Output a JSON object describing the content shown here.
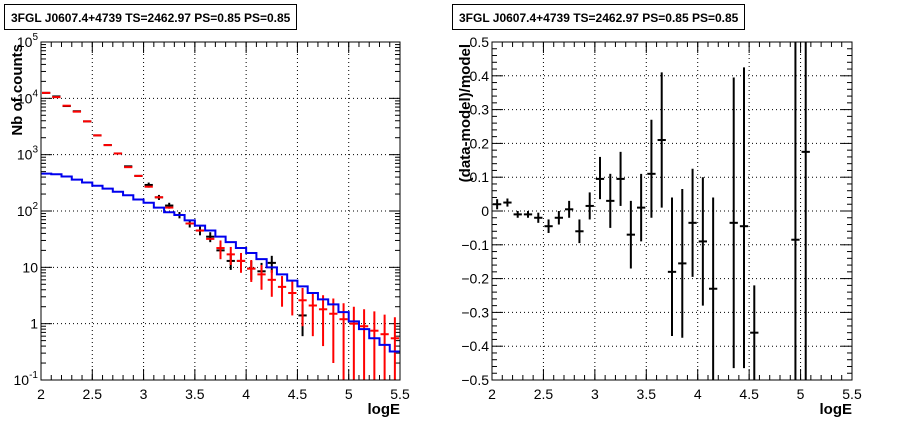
{
  "chart_data": [
    {
      "type": "line",
      "title": "3FGL J0607.4+4739 TS=2462.97 PS=0.85 PS=0.85",
      "xlabel": "logE",
      "ylabel": "Nb of counts",
      "xlim": [
        2,
        5.5
      ],
      "ylim": [
        0.1,
        100000
      ],
      "yscale": "log",
      "grid": true,
      "x_ticks": [
        2,
        2.5,
        3,
        3.5,
        4,
        4.5,
        5,
        5.5
      ],
      "x_tick_labels": [
        "2",
        "2.5",
        "3",
        "3.5",
        "4",
        "4.5",
        "5",
        "5.5"
      ],
      "y_ticks": [
        0.1,
        1,
        10,
        100,
        1000,
        10000,
        100000
      ],
      "y_tick_labels": [
        "10⁻¹",
        "1",
        "10",
        "10²",
        "10³",
        "10⁴",
        "10⁵"
      ],
      "bin_edges": [
        2.0,
        2.1,
        2.2,
        2.3,
        2.4,
        2.5,
        2.6,
        2.7,
        2.8,
        2.9,
        3.0,
        3.1,
        3.2,
        3.3,
        3.4,
        3.5,
        3.6,
        3.7,
        3.8,
        3.9,
        4.0,
        4.1,
        4.2,
        4.3,
        4.4,
        4.5,
        4.6,
        4.7,
        4.8,
        4.9,
        5.0,
        5.1,
        5.2,
        5.3,
        5.4,
        5.5
      ],
      "series": [
        {
          "style": "points",
          "color": "#000000",
          "x": [
            2.05,
            2.15,
            2.25,
            2.35,
            2.45,
            2.55,
            2.65,
            2.75,
            2.85,
            2.95,
            3.05,
            3.15,
            3.25,
            3.35,
            3.45,
            3.55,
            3.65,
            3.75,
            3.85,
            3.95,
            4.05,
            4.15,
            4.25,
            4.55
          ],
          "y": [
            12500,
            10800,
            7300,
            5900,
            3900,
            2200,
            1480,
            1050,
            620,
            420,
            290,
            175,
            125,
            85,
            60,
            45,
            35,
            20,
            13,
            13,
            9.5,
            8.5,
            12,
            1.4
          ],
          "err_low": [
            0,
            0,
            0,
            0,
            0,
            0,
            0,
            0,
            0,
            0,
            30,
            18,
            15,
            11,
            9,
            8,
            7,
            6,
            4,
            4,
            3.5,
            3.5,
            4,
            0.8
          ],
          "err_high": [
            0,
            0,
            0,
            0,
            0,
            0,
            0,
            0,
            0,
            0,
            30,
            18,
            15,
            11,
            9,
            8,
            7,
            6,
            4,
            4,
            3.5,
            3.5,
            4,
            0.8
          ]
        },
        {
          "style": "steps-errorbars",
          "color": "#ff0000",
          "x": [
            2.05,
            2.15,
            2.25,
            2.35,
            2.45,
            2.55,
            2.65,
            2.75,
            2.85,
            2.95,
            3.05,
            3.15,
            3.25,
            3.35,
            3.45,
            3.55,
            3.65,
            3.75,
            3.85,
            3.95,
            4.05,
            4.15,
            4.25,
            4.35,
            4.45,
            4.55,
            4.65,
            4.75,
            4.85,
            4.95,
            5.05,
            5.15,
            5.25,
            5.35,
            5.45
          ],
          "y": [
            12500,
            10500,
            7400,
            5800,
            3900,
            2200,
            1480,
            1050,
            600,
            420,
            270,
            175,
            115,
            85,
            60,
            45,
            32,
            22,
            17,
            13,
            9.5,
            7.5,
            6,
            4.5,
            3.5,
            2.6,
            2.1,
            1.8,
            1.5,
            1.2,
            1.0,
            0.9,
            0.75,
            0.65,
            0.55
          ],
          "err_low": [
            0,
            0,
            0,
            0,
            0,
            0,
            0,
            0,
            0,
            0,
            0,
            0,
            0,
            0,
            0,
            0,
            0,
            8,
            6,
            5,
            4,
            3.5,
            3,
            2.5,
            2.1,
            1.7,
            1.5,
            1.4,
            1.3,
            1.1,
            0.95,
            0.86,
            0.72,
            0.63,
            0.54
          ],
          "err_high": [
            0,
            0,
            0,
            0,
            0,
            0,
            0,
            0,
            0,
            0,
            0,
            0,
            0,
            0,
            0,
            0,
            0,
            8,
            6,
            5,
            4,
            3.5,
            3,
            2.5,
            2.1,
            1.7,
            1.5,
            1.4,
            1.3,
            1.1,
            1.0,
            0.9,
            0.9,
            0.8,
            0.75
          ]
        },
        {
          "style": "steps",
          "color": "#0000ee",
          "values": [
            460,
            450,
            410,
            360,
            320,
            280,
            250,
            220,
            190,
            160,
            140,
            115,
            95,
            85,
            68,
            55,
            45,
            35,
            28,
            22,
            18,
            14,
            10,
            7.5,
            5.8,
            4.6,
            3.5,
            2.7,
            2.2,
            1.6,
            1.1,
            0.8,
            0.55,
            0.42,
            0.32
          ]
        }
      ]
    },
    {
      "type": "scatter",
      "title": "3FGL J0607.4+4739 TS=2462.97 PS=0.85 PS=0.85",
      "xlabel": "logE",
      "ylabel": "(data-model)/model",
      "xlim": [
        2,
        5.5
      ],
      "ylim": [
        -0.5,
        0.5
      ],
      "grid": true,
      "x_ticks": [
        2,
        2.5,
        3,
        3.5,
        4,
        4.5,
        5,
        5.5
      ],
      "x_tick_labels": [
        "2",
        "2.5",
        "3",
        "3.5",
        "4",
        "4.5",
        "5",
        "5.5"
      ],
      "y_ticks": [
        -0.5,
        -0.4,
        -0.3,
        -0.2,
        -0.1,
        0,
        0.1,
        0.2,
        0.3,
        0.4,
        0.5
      ],
      "y_tick_labels": [
        "−0.5",
        "−0.4",
        "−0.3",
        "−0.2",
        "−0.1",
        "0",
        "0.1",
        "0.2",
        "0.3",
        "0.4",
        "0.5"
      ],
      "series": [
        {
          "style": "points",
          "color": "#000000",
          "x": [
            2.05,
            2.15,
            2.25,
            2.35,
            2.45,
            2.55,
            2.65,
            2.75,
            2.85,
            2.95,
            3.05,
            3.15,
            3.25,
            3.35,
            3.45,
            3.55,
            3.65,
            3.75,
            3.85,
            3.95,
            4.05,
            4.15,
            4.35,
            4.45,
            4.55,
            4.95,
            5.05
          ],
          "y": [
            0.02,
            0.025,
            -0.01,
            -0.01,
            -0.02,
            -0.045,
            -0.02,
            0.005,
            -0.06,
            0.015,
            0.095,
            0.03,
            0.095,
            -0.07,
            0.01,
            0.11,
            0.21,
            -0.18,
            -0.155,
            -0.035,
            -0.09,
            -0.23,
            -0.035,
            -0.045,
            -0.36,
            -0.085,
            0.175
          ],
          "err_low": [
            0.015,
            0.012,
            0.01,
            0.01,
            0.015,
            0.02,
            0.02,
            0.025,
            0.035,
            0.04,
            0.06,
            0.08,
            0.08,
            0.1,
            0.1,
            0.13,
            0.2,
            0.19,
            0.22,
            0.16,
            0.19,
            0.27,
            0.43,
            0.42,
            0.14,
            0.415,
            0.675
          ],
          "err_high": [
            0.015,
            0.012,
            0.01,
            0.01,
            0.015,
            0.02,
            0.02,
            0.025,
            0.035,
            0.04,
            0.065,
            0.08,
            0.08,
            0.1,
            0.1,
            0.16,
            0.2,
            0.22,
            0.22,
            0.16,
            0.19,
            0.27,
            0.43,
            0.47,
            0.14,
            0.585,
            0.325
          ]
        }
      ]
    }
  ]
}
